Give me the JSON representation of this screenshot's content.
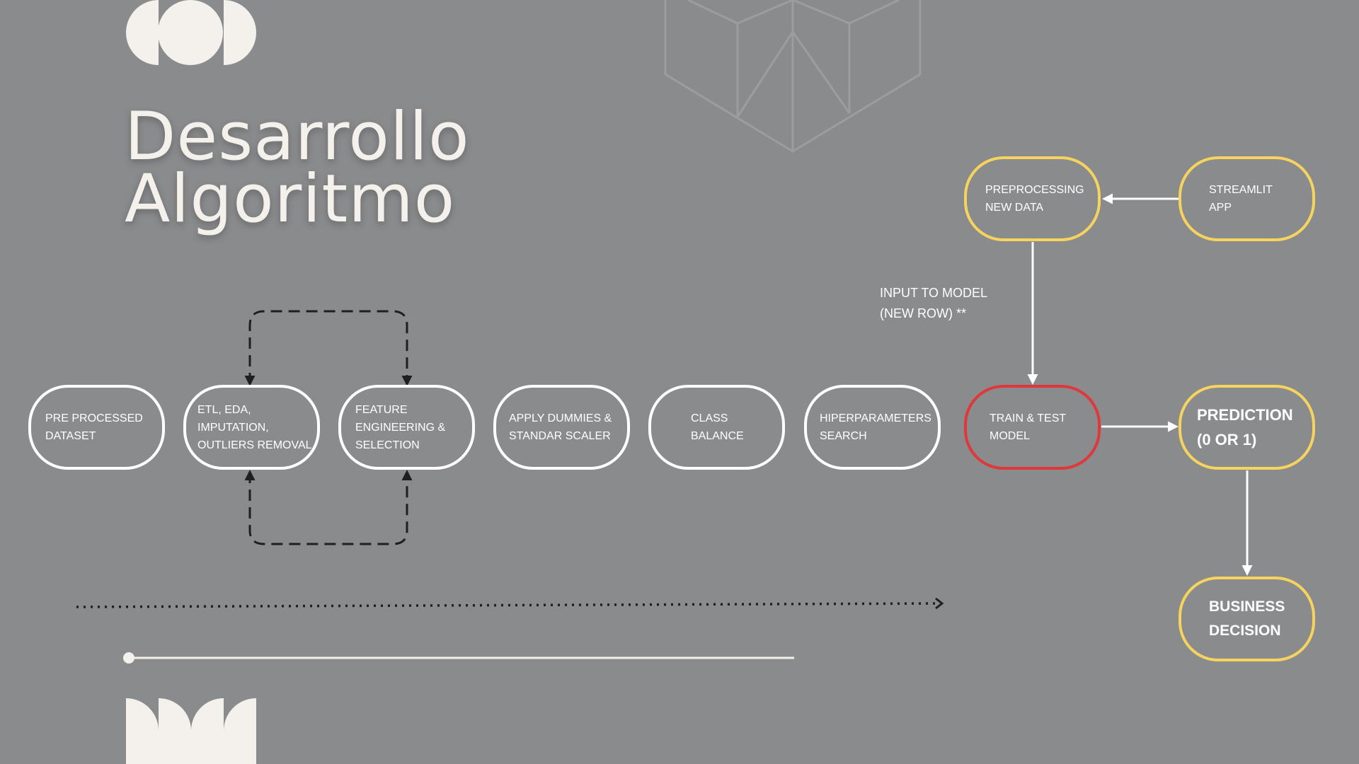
{
  "title": {
    "line1": "Desarrollo",
    "line2": "Algoritmo"
  },
  "nodes": {
    "pre_processed_dataset": "PRE PROCESSED\nDATASET",
    "etl_eda": "ETL, EDA,\nIMPUTATION,\nOUTLIERS REMOVAL",
    "feature_engineering": "FEATURE\nENGINEERING &\nSELECTION",
    "apply_dummies": "APPLY DUMMIES &\nSTANDAR SCALER",
    "class_balance": "CLASS\nBALANCE",
    "hiperparameters": "HIPERPARAMETERS\nSEARCH",
    "train_test": "TRAIN & TEST\nMODEL",
    "preprocessing_new": "PREPROCESSING\nNEW DATA",
    "streamlit_app": "STREAMLIT\nAPP",
    "prediction": "PREDICTION\n(0 OR 1)",
    "business_decision": "BUSINESS\nDECISION"
  },
  "annotation": "INPUT TO MODEL\n(NEW ROW) **",
  "colors": {
    "background": "#8a8b8d",
    "cream": "#f4f1ec",
    "white": "#ffffff",
    "yellow": "#f6d25e",
    "red": "#e0383a",
    "dark": "#1f1f1f",
    "outline": "#9c9d9f"
  },
  "icons": [
    "semicircle-cluster-top-icon",
    "cube-outline-icon",
    "semicircle-cluster-bottom-icon"
  ]
}
